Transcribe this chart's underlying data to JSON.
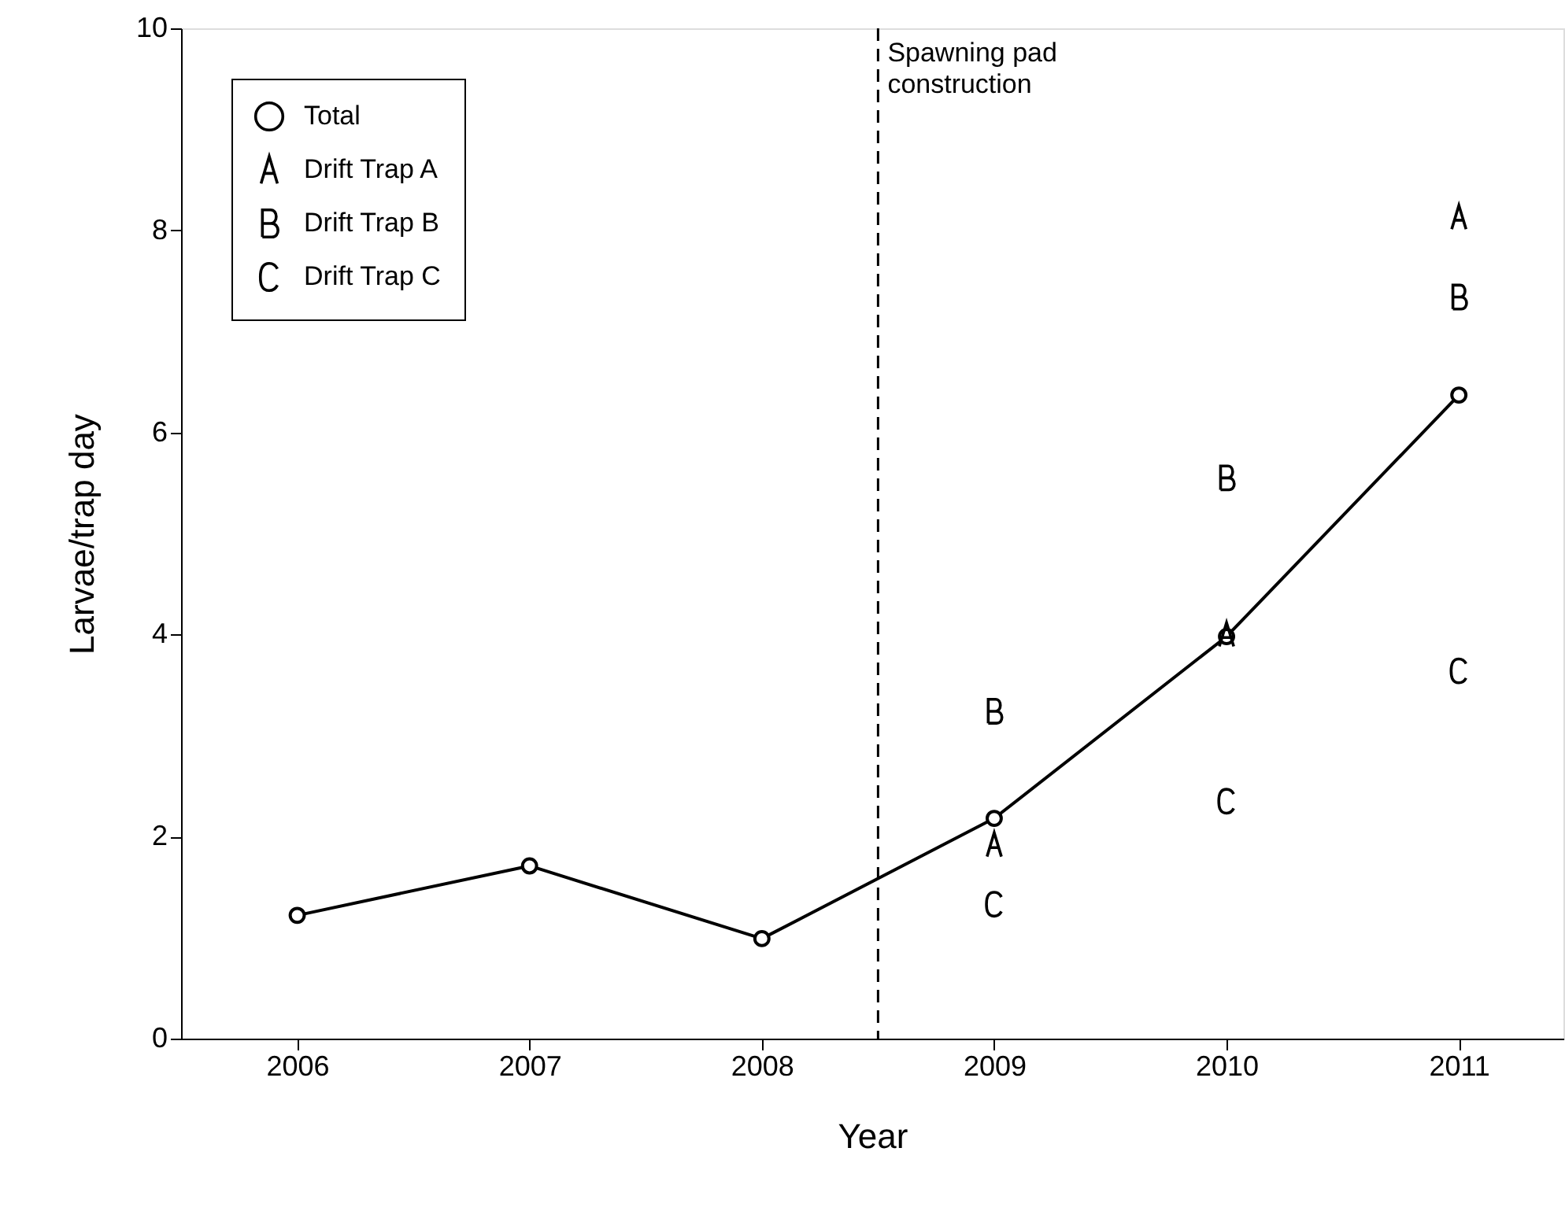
{
  "chart_data": {
    "type": "line",
    "xlabel": "Year",
    "ylabel": "Larvae/trap day",
    "x": [
      2006,
      2007,
      2008,
      2009,
      2010,
      2011
    ],
    "series": [
      {
        "name": "Total",
        "color": "#000000",
        "marker": "circle",
        "values": [
          1.22,
          1.71,
          0.99,
          2.18,
          3.98,
          6.37
        ]
      },
      {
        "name": "Drift Trap A",
        "type": "scatter",
        "color": "#000000",
        "x": [
          2009,
          2010,
          2011
        ],
        "values": [
          1.92,
          4.0,
          8.13
        ]
      },
      {
        "name": "Drift Trap B",
        "type": "scatter",
        "color": "#000000",
        "x": [
          2009,
          2010,
          2011
        ],
        "values": [
          3.24,
          5.55,
          7.34
        ]
      },
      {
        "name": "Drift Trap C",
        "type": "scatter",
        "color": "#000000",
        "x": [
          2009,
          2010,
          2011
        ],
        "values": [
          1.33,
          2.35,
          3.64
        ]
      }
    ],
    "ref_lines": [
      {
        "axis": "x",
        "value": 2008.5,
        "label": "Spawning pad construction",
        "color": "#000000",
        "line_style": "dashed"
      }
    ],
    "xlim": [
      2005.5,
      2011.45
    ],
    "xticks": [
      2006,
      2007,
      2008,
      2009,
      2010,
      2011
    ],
    "ylim": [
      0,
      10
    ],
    "yticks": [
      0,
      2,
      4,
      6,
      8,
      10
    ],
    "grid": false,
    "legend": "top left"
  }
}
